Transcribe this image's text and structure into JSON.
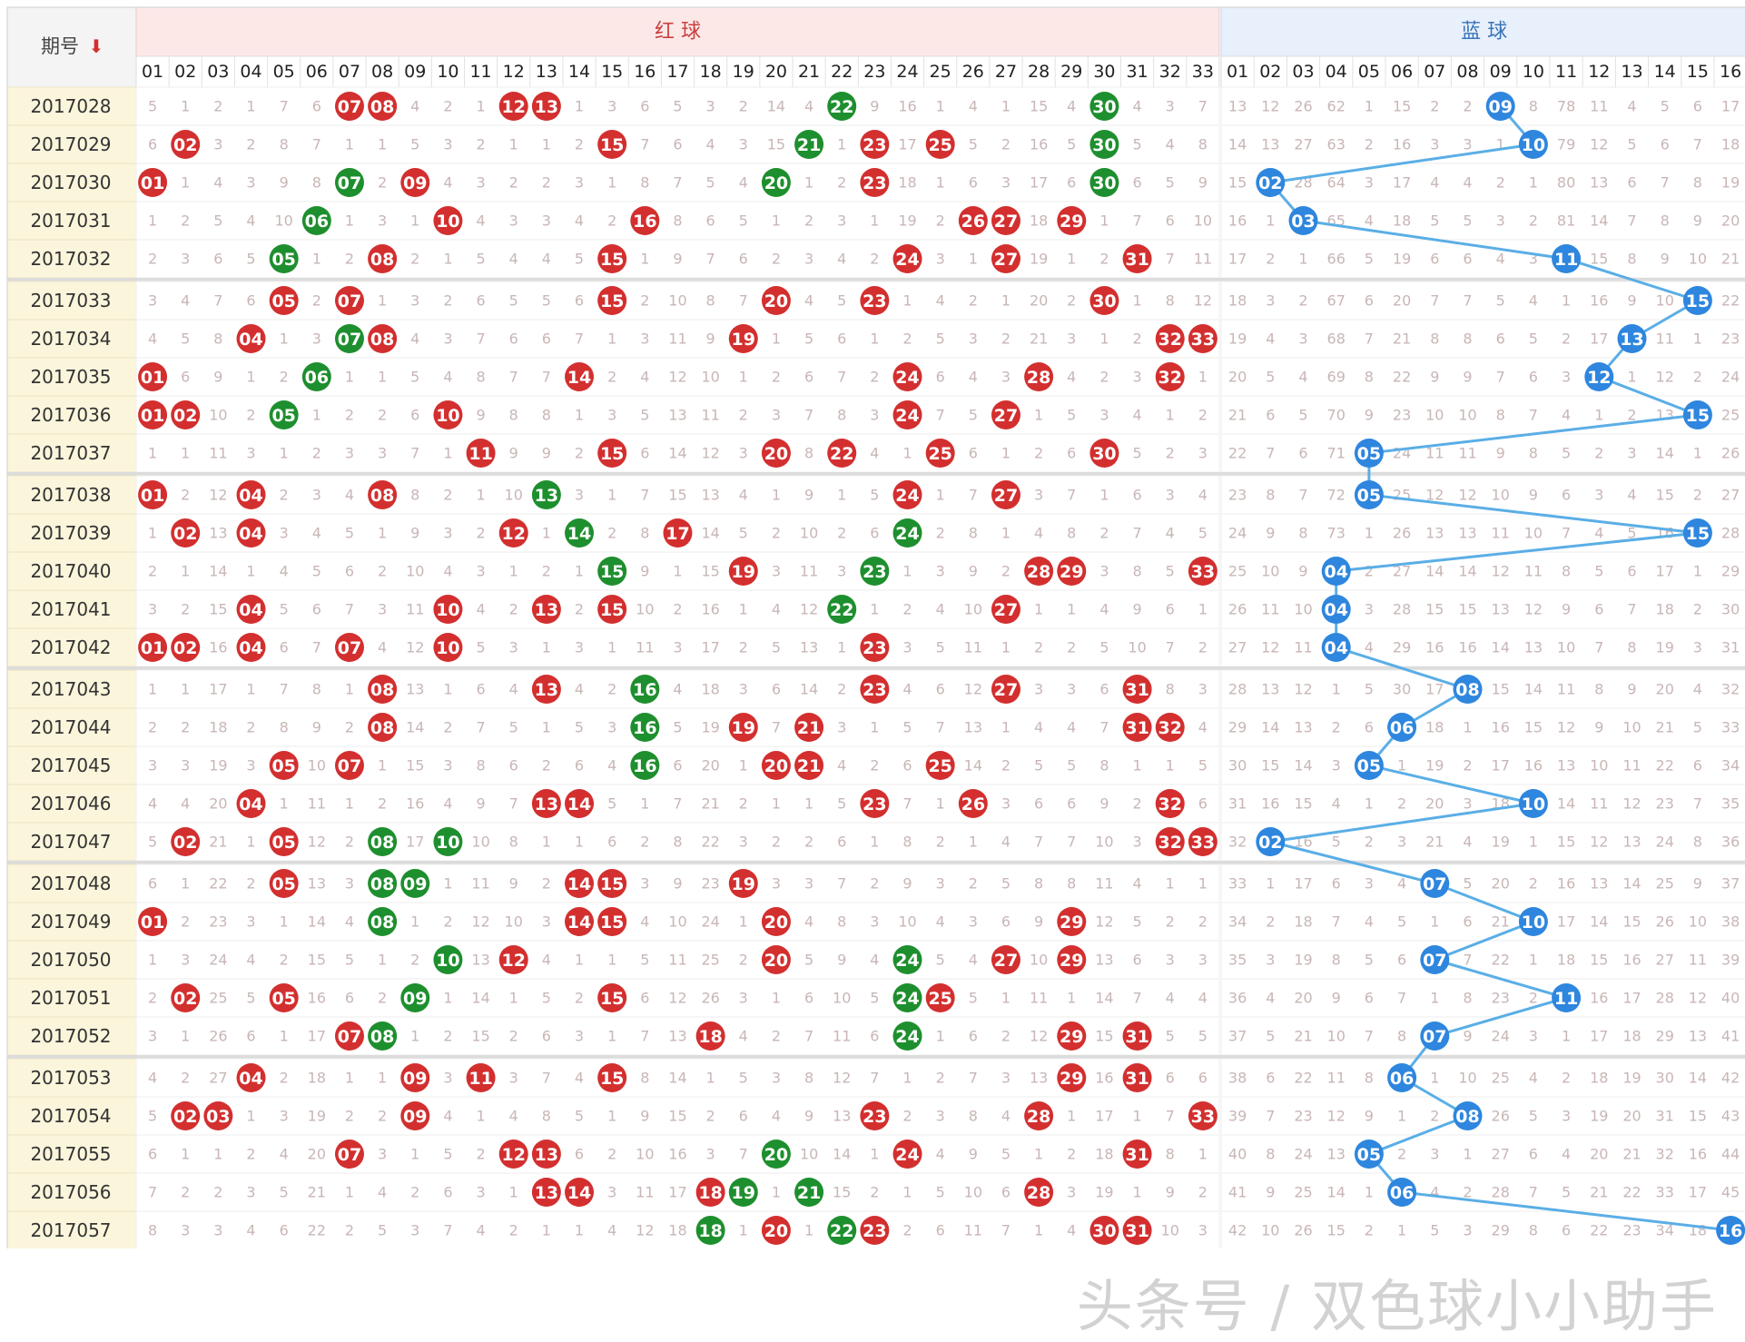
{
  "header": {
    "period_label": "期号",
    "sort_arrow": "⬇",
    "red_group": "红 球",
    "blue_group": "蓝 球",
    "red_cols": [
      "01",
      "02",
      "03",
      "04",
      "05",
      "06",
      "07",
      "08",
      "09",
      "10",
      "11",
      "12",
      "13",
      "14",
      "15",
      "16",
      "17",
      "18",
      "19",
      "20",
      "21",
      "22",
      "23",
      "24",
      "25",
      "26",
      "27",
      "28",
      "29",
      "30",
      "31",
      "32",
      "33"
    ],
    "blue_cols": [
      "01",
      "02",
      "03",
      "04",
      "05",
      "06",
      "07",
      "08",
      "09",
      "10",
      "11",
      "12",
      "13",
      "14",
      "15",
      "16"
    ]
  },
  "colors": {
    "red_ball": "#d32f2f",
    "green_ball": "#1e8f2e",
    "blue_ball": "#2e86de",
    "blue_line": "#5aaee6",
    "period_bg": "#fbf5dc",
    "red_header_bg": "#fde8e8",
    "blue_header_bg": "#e7f0fb",
    "omission_text": "#c9b6b6",
    "band_text": "#333333",
    "band_bg": "#cfcfcf"
  },
  "rows": [
    {
      "period": "2017028",
      "red": [
        7,
        8,
        12,
        13,
        22,
        30
      ],
      "green": [
        22,
        30
      ],
      "blue": 9
    },
    {
      "period": "2017029",
      "red": [
        2,
        15,
        21,
        23,
        25,
        30
      ],
      "green": [
        21,
        30
      ],
      "blue": 10
    },
    {
      "period": "2017030",
      "red": [
        1,
        7,
        9,
        20,
        23,
        30
      ],
      "green": [
        7,
        20,
        30
      ],
      "blue": 2
    },
    {
      "period": "2017031",
      "red": [
        6,
        10,
        16,
        26,
        27,
        29
      ],
      "green": [
        6
      ],
      "blue": 3
    },
    {
      "period": "2017032",
      "red": [
        5,
        8,
        15,
        24,
        27,
        31
      ],
      "green": [
        5
      ],
      "blue": 11
    },
    {
      "period": "2017033",
      "red": [
        5,
        7,
        15,
        20,
        23,
        30
      ],
      "green": [],
      "blue": 15
    },
    {
      "period": "2017034",
      "red": [
        4,
        7,
        8,
        19,
        32,
        33
      ],
      "green": [
        7
      ],
      "blue": 13
    },
    {
      "period": "2017035",
      "red": [
        1,
        6,
        14,
        24,
        28,
        32
      ],
      "green": [
        6
      ],
      "blue": 12
    },
    {
      "period": "2017036",
      "red": [
        1,
        2,
        5,
        10,
        24,
        27
      ],
      "green": [
        5
      ],
      "blue": 15
    },
    {
      "period": "2017037",
      "red": [
        11,
        15,
        20,
        22,
        25,
        30
      ],
      "green": [],
      "blue": 5
    },
    {
      "period": "2017038",
      "red": [
        1,
        4,
        8,
        13,
        24,
        27
      ],
      "green": [
        13
      ],
      "blue": 5
    },
    {
      "period": "2017039",
      "red": [
        2,
        4,
        12,
        14,
        17,
        24
      ],
      "green": [
        14,
        24
      ],
      "blue": 15
    },
    {
      "period": "2017040",
      "red": [
        15,
        19,
        23,
        28,
        29,
        33
      ],
      "green": [
        15,
        23
      ],
      "blue": 4
    },
    {
      "period": "2017041",
      "red": [
        4,
        10,
        13,
        15,
        22,
        27
      ],
      "green": [
        22
      ],
      "blue": 4
    },
    {
      "period": "2017042",
      "red": [
        1,
        2,
        4,
        7,
        10,
        23
      ],
      "green": [],
      "blue": 4
    },
    {
      "period": "2017043",
      "red": [
        8,
        13,
        16,
        23,
        27,
        31
      ],
      "green": [
        16
      ],
      "blue": 8
    },
    {
      "period": "2017044",
      "red": [
        8,
        16,
        19,
        21,
        31,
        32
      ],
      "green": [
        16
      ],
      "blue": 6
    },
    {
      "period": "2017045",
      "red": [
        5,
        7,
        16,
        20,
        21,
        25
      ],
      "green": [
        16
      ],
      "blue": 5
    },
    {
      "period": "2017046",
      "red": [
        4,
        13,
        14,
        23,
        26,
        32
      ],
      "green": [],
      "blue": 10
    },
    {
      "period": "2017047",
      "red": [
        2,
        5,
        8,
        10,
        32,
        33
      ],
      "green": [
        8,
        10
      ],
      "blue": 2
    },
    {
      "period": "2017048",
      "red": [
        5,
        8,
        9,
        14,
        15,
        19
      ],
      "green": [
        8,
        9
      ],
      "blue": 7
    },
    {
      "period": "2017049",
      "red": [
        1,
        8,
        14,
        15,
        20,
        29
      ],
      "green": [
        8
      ],
      "blue": 10
    },
    {
      "period": "2017050",
      "red": [
        10,
        12,
        20,
        24,
        27,
        29
      ],
      "green": [
        10,
        24
      ],
      "blue": 7
    },
    {
      "period": "2017051",
      "red": [
        2,
        5,
        9,
        15,
        24,
        25
      ],
      "green": [
        9,
        24
      ],
      "blue": 11
    },
    {
      "period": "2017052",
      "red": [
        7,
        8,
        18,
        24,
        29,
        31
      ],
      "green": [
        8,
        24
      ],
      "blue": 7
    },
    {
      "period": "2017053",
      "red": [
        4,
        9,
        11,
        15,
        29,
        31
      ],
      "green": [],
      "blue": 6
    },
    {
      "period": "2017054",
      "red": [
        2,
        3,
        9,
        23,
        28,
        33
      ],
      "green": [],
      "blue": 8
    },
    {
      "period": "2017055",
      "red": [
        7,
        12,
        13,
        20,
        24,
        31
      ],
      "green": [
        20
      ],
      "blue": 5
    },
    {
      "period": "2017056",
      "red": [
        13,
        14,
        18,
        19,
        21,
        28
      ],
      "green": [
        19,
        21
      ],
      "blue": 6
    },
    {
      "period": "2017057",
      "red": [
        18,
        20,
        22,
        23,
        30,
        31
      ],
      "green": [
        18,
        22
      ],
      "blue": 16
    }
  ],
  "watermark": "头条号 / 双色球小小助手"
}
